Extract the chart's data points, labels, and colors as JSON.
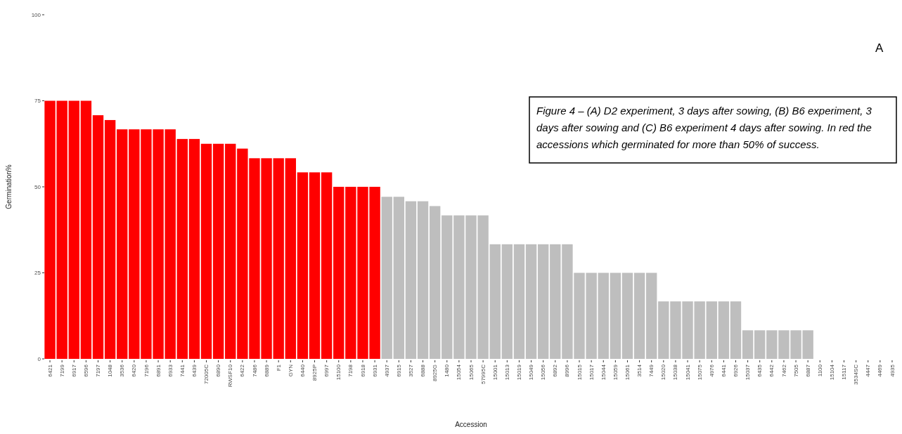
{
  "chart_data": {
    "type": "bar",
    "xlabel": "Accession",
    "ylabel": "Germination%",
    "categories": [
      "6421",
      "7199",
      "6917",
      "6596",
      "7197",
      "1048",
      "3536",
      "6420",
      "7196",
      "6891",
      "6933",
      "7441",
      "6439",
      "72005C",
      "6890",
      "RWSF10",
      "6422",
      "7486",
      "6889",
      "F1",
      "GYN",
      "6440",
      "8925P",
      "6997",
      "15100",
      "7198",
      "6918",
      "6931",
      "4937",
      "6915",
      "3527",
      "6888",
      "8925G",
      "1480",
      "15054",
      "15065",
      "57995C",
      "15001",
      "15013",
      "15019",
      "15049",
      "15056",
      "6892",
      "8996",
      "15015",
      "15017",
      "15044",
      "15059",
      "15061",
      "3514",
      "7449",
      "15020",
      "15038",
      "15041",
      "15075",
      "4976",
      "6441",
      "6926",
      "15037",
      "6435",
      "6442",
      "7462",
      "7505",
      "6887",
      "1100",
      "15104",
      "15117",
      "3534SC",
      "4447",
      "4469",
      "4935"
    ],
    "values": [
      75,
      75,
      75,
      75,
      70.8,
      69.4,
      66.7,
      66.7,
      66.7,
      66.7,
      66.7,
      63.9,
      63.9,
      62.5,
      62.5,
      62.5,
      61.1,
      58.3,
      58.3,
      58.3,
      58.3,
      54.2,
      54.2,
      54.2,
      50,
      50,
      50,
      50,
      47.1,
      47.1,
      45.8,
      45.8,
      44.4,
      41.7,
      41.7,
      41.7,
      41.7,
      33.3,
      33.3,
      33.3,
      33.3,
      33.3,
      33.3,
      33.3,
      25,
      25,
      25,
      25,
      25,
      25,
      25,
      16.7,
      16.7,
      16.7,
      16.7,
      16.7,
      16.7,
      16.7,
      8.3,
      8.3,
      8.3,
      8.3,
      8.3,
      8.3,
      0,
      0,
      0,
      0,
      0,
      0,
      0
    ],
    "colors": [
      "#ff0000",
      "#ff0000",
      "#ff0000",
      "#ff0000",
      "#ff0000",
      "#ff0000",
      "#ff0000",
      "#ff0000",
      "#ff0000",
      "#ff0000",
      "#ff0000",
      "#ff0000",
      "#ff0000",
      "#ff0000",
      "#ff0000",
      "#ff0000",
      "#ff0000",
      "#ff0000",
      "#ff0000",
      "#ff0000",
      "#ff0000",
      "#ff0000",
      "#ff0000",
      "#ff0000",
      "#ff0000",
      "#ff0000",
      "#ff0000",
      "#ff0000",
      "#bebebe",
      "#bebebe",
      "#bebebe",
      "#bebebe",
      "#bebebe",
      "#bebebe",
      "#bebebe",
      "#bebebe",
      "#bebebe",
      "#bebebe",
      "#bebebe",
      "#bebebe",
      "#bebebe",
      "#bebebe",
      "#bebebe",
      "#bebebe",
      "#bebebe",
      "#bebebe",
      "#bebebe",
      "#bebebe",
      "#bebebe",
      "#bebebe",
      "#bebebe",
      "#bebebe",
      "#bebebe",
      "#bebebe",
      "#bebebe",
      "#bebebe",
      "#bebebe",
      "#bebebe",
      "#bebebe",
      "#bebebe",
      "#bebebe",
      "#bebebe",
      "#bebebe",
      "#bebebe",
      "#bebebe",
      "#bebebe",
      "#bebebe",
      "#bebebe",
      "#bebebe",
      "#bebebe",
      "#bebebe"
    ],
    "ylim": [
      0,
      100
    ],
    "yticks": [
      0,
      25,
      50,
      75,
      100
    ],
    "annotations": [
      "A",
      "Figure 4 – (A) D2 experiment, 3 days after sowing, (B) B6 experiment, 3 days after sowing and (C) B6 experiment 4 days after sowing. In red the accessions which germinated for more than 50% of success."
    ]
  }
}
